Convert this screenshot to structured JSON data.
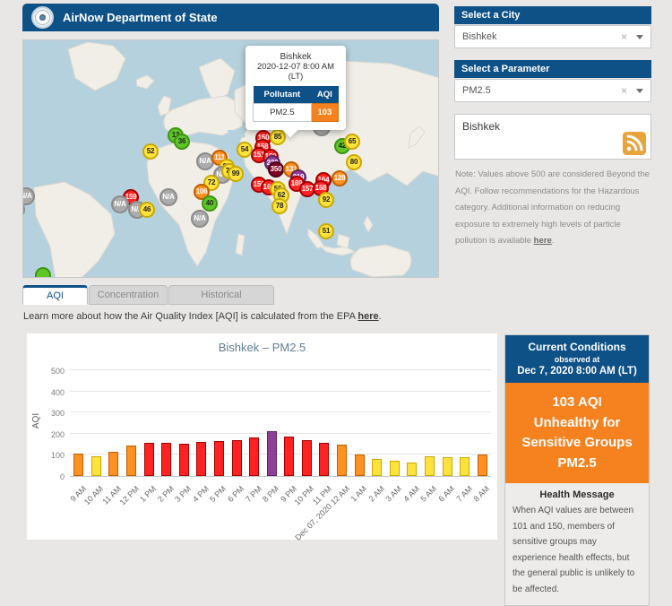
{
  "header": {
    "title": "AirNow Department of State"
  },
  "sidebar": {
    "city": {
      "label": "Select a City",
      "value": "Bishkek"
    },
    "parameter": {
      "label": "Select a Parameter",
      "value": "PM2.5"
    },
    "feed": {
      "title": "Bishkek"
    },
    "note": {
      "text": "Note: Values above 500 are considered Beyond the AQI. Follow recommendations for the Hazardous category. Additional information on reducing exposure to extremely high levels of particle pollution is available ",
      "link": "here",
      "suffix": "."
    }
  },
  "map": {
    "popup": {
      "city": "Bishkek",
      "datetime": "2020-12-07 8:00 AM",
      "timezone": "(LT)",
      "pollutant_header": "Pollutant",
      "aqi_header": "AQI",
      "pollutant": "PM2.5",
      "aqi": "103"
    },
    "markers": [
      {
        "label": "13",
        "cat": "green",
        "x": 170,
        "y": 106
      },
      {
        "label": "36",
        "cat": "green",
        "x": 177,
        "y": 113
      },
      {
        "label": "52",
        "cat": "yellow",
        "x": 142,
        "y": 124
      },
      {
        "label": "N/A",
        "cat": "na",
        "x": 203,
        "y": 135
      },
      {
        "label": "111",
        "cat": "orange",
        "x": 219,
        "y": 131
      },
      {
        "label": "86",
        "cat": "yellow",
        "x": 227,
        "y": 141
      },
      {
        "label": "N/A",
        "cat": "na",
        "x": 222,
        "y": 150
      },
      {
        "label": "71",
        "cat": "yellow",
        "x": 230,
        "y": 146
      },
      {
        "label": "99",
        "cat": "yellow",
        "x": 237,
        "y": 149
      },
      {
        "label": "54",
        "cat": "yellow",
        "x": 247,
        "y": 122
      },
      {
        "label": "72",
        "cat": "yellow",
        "x": 210,
        "y": 159
      },
      {
        "label": "106",
        "cat": "orange",
        "x": 199,
        "y": 169
      },
      {
        "label": "40",
        "cat": "green",
        "x": 208,
        "y": 182
      },
      {
        "label": "N/A",
        "cat": "na",
        "x": 197,
        "y": 199
      },
      {
        "label": "N/A",
        "cat": "na",
        "x": 162,
        "y": 175
      },
      {
        "label": "159",
        "cat": "red",
        "x": 120,
        "y": 175
      },
      {
        "label": "N/A",
        "cat": "na",
        "x": 108,
        "y": 183
      },
      {
        "label": "N/A",
        "cat": "na",
        "x": 127,
        "y": 189
      },
      {
        "label": "46",
        "cat": "yellow",
        "x": 138,
        "y": 189
      },
      {
        "label": "N/A",
        "cat": "na",
        "x": 3,
        "y": 174
      },
      {
        "label": "N/A",
        "cat": "na",
        "x": -8,
        "y": 189
      },
      {
        "label": "",
        "cat": "green",
        "x": 22,
        "y": 262
      },
      {
        "label": "150",
        "cat": "red",
        "x": 268,
        "y": 109
      },
      {
        "label": "85",
        "cat": "yellow",
        "x": 284,
        "y": 108
      },
      {
        "label": "158",
        "cat": "red",
        "x": 267,
        "y": 119
      },
      {
        "label": "151",
        "cat": "red",
        "x": 263,
        "y": 128
      },
      {
        "label": "159",
        "cat": "red",
        "x": 276,
        "y": 130
      },
      {
        "label": "230",
        "cat": "purple",
        "x": 278,
        "y": 137
      },
      {
        "label": "350",
        "cat": "maroon",
        "x": 282,
        "y": 144
      },
      {
        "label": "131",
        "cat": "orange",
        "x": 299,
        "y": 144
      },
      {
        "label": "219",
        "cat": "purple",
        "x": 307,
        "y": 153
      },
      {
        "label": "169",
        "cat": "red",
        "x": 305,
        "y": 160
      },
      {
        "label": "156",
        "cat": "red",
        "x": 263,
        "y": 161
      },
      {
        "label": "163",
        "cat": "red",
        "x": 274,
        "y": 164
      },
      {
        "label": "56",
        "cat": "yellow",
        "x": 284,
        "y": 166
      },
      {
        "label": "62",
        "cat": "yellow",
        "x": 288,
        "y": 173
      },
      {
        "label": "78",
        "cat": "yellow",
        "x": 286,
        "y": 185
      },
      {
        "label": "164",
        "cat": "red",
        "x": 335,
        "y": 156
      },
      {
        "label": "157",
        "cat": "red",
        "x": 317,
        "y": 166
      },
      {
        "label": "168",
        "cat": "red",
        "x": 332,
        "y": 165
      },
      {
        "label": "128",
        "cat": "orange",
        "x": 353,
        "y": 154
      },
      {
        "label": "92",
        "cat": "yellow",
        "x": 338,
        "y": 178
      },
      {
        "label": "51",
        "cat": "yellow",
        "x": 338,
        "y": 213
      },
      {
        "label": "N/A",
        "cat": "na",
        "x": 333,
        "y": 97
      },
      {
        "label": "42",
        "cat": "green",
        "x": 356,
        "y": 118
      },
      {
        "label": "65",
        "cat": "yellow",
        "x": 367,
        "y": 113
      },
      {
        "label": "80",
        "cat": "yellow",
        "x": 369,
        "y": 136
      }
    ]
  },
  "tabs": [
    {
      "label": "AQI",
      "active": true
    },
    {
      "label": "Concentration",
      "active": false
    },
    {
      "label": "Historical",
      "active": false
    }
  ],
  "learn_more": {
    "text": "Learn more about how the Air Quality Index [AQI] is calculated from the EPA ",
    "link": "here",
    "suffix": "."
  },
  "chart_data": {
    "type": "bar",
    "title": "Bishkek – PM2.5",
    "xlabel": "",
    "ylabel": "AQI",
    "ylim": [
      0,
      500
    ],
    "yticks": [
      0,
      100,
      200,
      300,
      400,
      500
    ],
    "grid": true,
    "legend_position": "none",
    "categories": [
      "9 AM",
      "10 AM",
      "11 AM",
      "12 PM",
      "1 PM",
      "2 PM",
      "3 PM",
      "4 PM",
      "5 PM",
      "6 PM",
      "7 PM",
      "8 PM",
      "9 PM",
      "10 PM",
      "11 PM",
      "Dec 07, 2020 12 AM",
      "1 AM",
      "2 AM",
      "3 AM",
      "4 AM",
      "5 AM",
      "6 AM",
      "7 AM",
      "8 AM"
    ],
    "values": [
      105,
      93,
      115,
      143,
      155,
      157,
      152,
      161,
      166,
      170,
      184,
      210,
      185,
      168,
      157,
      148,
      102,
      80,
      72,
      62,
      95,
      90,
      88,
      103
    ]
  },
  "current_conditions": {
    "title": "Current Conditions",
    "observed_at_label": "observed at",
    "observed_at": "Dec 7, 2020 8:00 AM (LT)",
    "aqi_value": "103 AQI",
    "category": "Unhealthy for Sensitive Groups",
    "pollutant": "PM2.5",
    "health_message_title": "Health Message",
    "health_message": "When AQI values are between 101 and 150, members of sensitive groups may experience health effects, but the general public is unlikely to be affected."
  },
  "icons": {
    "clear": "×"
  },
  "colors": {
    "navy": "#0E5187",
    "accent_orange": "#F5821F",
    "aqi_green": "#5DC726",
    "aqi_yellow": "#FFE33C",
    "aqi_orange": "#FF9022",
    "aqi_red": "#FF2222",
    "aqi_purple": "#8F3F97",
    "aqi_maroon": "#7E0023",
    "na_gray": "#ABABAB",
    "rss_orange": "#E8A33B",
    "water": "#B5D1DE",
    "land": "#F0EEE7"
  }
}
